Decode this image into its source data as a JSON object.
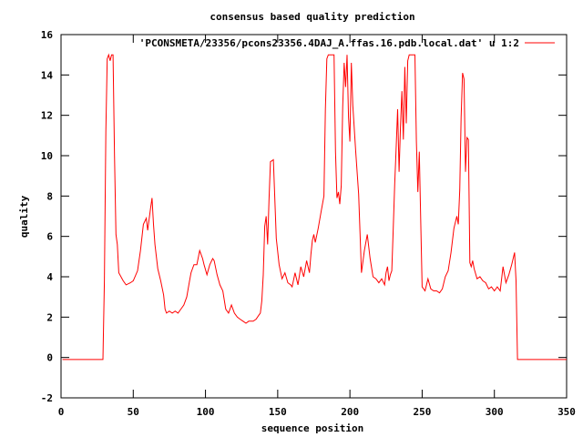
{
  "chart_data": {
    "type": "line",
    "title": "consensus based quality prediction",
    "xlabel": "sequence position",
    "ylabel": "quality",
    "xlim": [
      0,
      350
    ],
    "ylim": [
      -2,
      16
    ],
    "xticks": [
      0,
      50,
      100,
      150,
      200,
      250,
      300,
      350
    ],
    "yticks": [
      -2,
      0,
      2,
      4,
      6,
      8,
      10,
      12,
      14,
      16
    ],
    "grid": false,
    "legend_position": "top-right",
    "series": [
      {
        "name": "'PCONSMETA/23356/pcons23356.4DAJ_A.ffas.16.pdb.local.dat' u 1:2",
        "color": "#ff0000",
        "x": [
          1,
          29,
          30,
          31,
          32,
          33,
          34,
          35,
          36,
          37,
          38,
          39,
          40,
          43,
          45,
          48,
          50,
          53,
          55,
          57,
          59,
          60,
          62,
          63,
          64,
          65,
          67,
          69,
          71,
          72,
          73,
          75,
          77,
          79,
          81,
          83,
          85,
          87,
          89,
          90,
          92,
          94,
          96,
          98,
          99,
          101,
          103,
          105,
          106,
          108,
          110,
          112,
          114,
          116,
          118,
          120,
          122,
          124,
          126,
          128,
          130,
          133,
          135,
          137,
          138,
          139,
          140,
          141,
          142,
          143,
          144,
          145,
          147,
          149,
          151,
          153,
          155,
          157,
          159,
          160,
          162,
          164,
          166,
          168,
          170,
          172,
          173,
          174,
          175,
          176,
          178,
          180,
          182,
          183,
          184,
          185,
          186,
          187,
          188,
          189,
          190,
          191,
          192,
          193,
          194,
          195,
          196,
          197,
          198,
          199,
          200,
          201,
          202,
          204,
          206,
          208,
          210,
          212,
          214,
          216,
          218,
          220,
          222,
          224,
          225,
          226,
          227,
          228,
          229,
          230,
          231,
          232,
          233,
          234,
          235,
          236,
          237,
          238,
          239,
          240,
          241,
          242,
          243,
          244,
          245,
          246,
          247,
          248,
          249,
          250,
          252,
          254,
          256,
          258,
          260,
          262,
          264,
          266,
          268,
          270,
          272,
          274,
          275,
          276,
          277,
          278,
          279,
          280,
          281,
          282,
          283,
          284,
          285,
          286,
          288,
          290,
          292,
          294,
          296,
          298,
          300,
          302,
          304,
          306,
          308,
          310,
          312,
          314,
          315,
          316,
          317,
          350
        ],
        "values": [
          -0.1,
          -0.1,
          3.8,
          11.2,
          14.8,
          15.0,
          14.7,
          15.0,
          15.0,
          10.0,
          6.1,
          5.6,
          4.2,
          3.8,
          3.6,
          3.7,
          3.8,
          4.3,
          5.3,
          6.6,
          6.9,
          6.3,
          7.4,
          7.9,
          6.6,
          5.6,
          4.4,
          3.8,
          3.1,
          2.4,
          2.2,
          2.3,
          2.2,
          2.3,
          2.2,
          2.4,
          2.6,
          3.0,
          3.8,
          4.2,
          4.6,
          4.6,
          5.3,
          4.9,
          4.6,
          4.1,
          4.6,
          4.9,
          4.8,
          4.1,
          3.6,
          3.3,
          2.4,
          2.2,
          2.6,
          2.2,
          2.0,
          1.9,
          1.8,
          1.7,
          1.8,
          1.8,
          1.9,
          2.1,
          2.2,
          2.8,
          4.1,
          6.5,
          7.0,
          5.6,
          7.8,
          9.7,
          9.8,
          5.9,
          4.6,
          3.9,
          4.2,
          3.7,
          3.6,
          3.5,
          4.2,
          3.6,
          4.5,
          4.0,
          4.8,
          4.2,
          5.1,
          5.8,
          6.1,
          5.7,
          6.4,
          7.2,
          8.0,
          12.3,
          14.8,
          15.0,
          15.0,
          15.0,
          15.0,
          15.0,
          10.2,
          7.9,
          8.2,
          7.6,
          8.5,
          12.4,
          14.6,
          13.4,
          15.0,
          11.9,
          10.7,
          14.6,
          12.5,
          10.2,
          8.1,
          4.2,
          5.3,
          6.1,
          4.9,
          4.0,
          3.9,
          3.7,
          3.9,
          3.6,
          4.2,
          4.5,
          3.8,
          4.1,
          4.3,
          6.4,
          8.6,
          10.4,
          12.3,
          9.2,
          11.4,
          13.2,
          10.8,
          14.4,
          11.6,
          14.7,
          15.0,
          15.0,
          15.0,
          15.0,
          15.0,
          10.7,
          8.2,
          10.2,
          6.9,
          3.5,
          3.3,
          3.9,
          3.4,
          3.3,
          3.3,
          3.2,
          3.4,
          4.0,
          4.3,
          5.2,
          6.4,
          7.0,
          6.6,
          8.3,
          11.9,
          14.1,
          13.8,
          9.2,
          10.9,
          10.8,
          4.7,
          4.5,
          4.8,
          4.4,
          3.9,
          4.0,
          3.8,
          3.7,
          3.4,
          3.5,
          3.3,
          3.5,
          3.3,
          4.5,
          3.7,
          4.1,
          4.6,
          5.2,
          3.8,
          -0.1,
          -0.1,
          -0.1
        ]
      }
    ]
  }
}
